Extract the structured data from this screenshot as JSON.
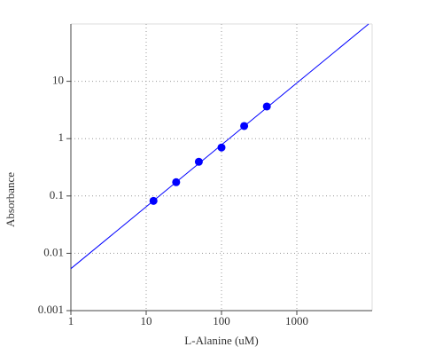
{
  "chart_data": {
    "type": "scatter",
    "x_label": "L-Alanine (uM)",
    "y_label": "Absorbance",
    "xscale": "log",
    "yscale": "log",
    "grid": true,
    "xlim": [
      1,
      10000
    ],
    "ylim": [
      0.001,
      100
    ],
    "xticks": [
      1,
      10,
      100,
      1000
    ],
    "yticks": [
      0.001,
      0.01,
      0.1,
      1,
      10
    ],
    "points": {
      "x": [
        12.5,
        25,
        50,
        100,
        200,
        400
      ],
      "y": [
        0.082,
        0.174,
        0.395,
        0.7,
        1.66,
        3.64
      ],
      "color": "#0000ff"
    },
    "fit": {
      "x": [
        1,
        9000
      ],
      "y": [
        0.0054,
        100
      ],
      "color": "#0000ff"
    }
  }
}
